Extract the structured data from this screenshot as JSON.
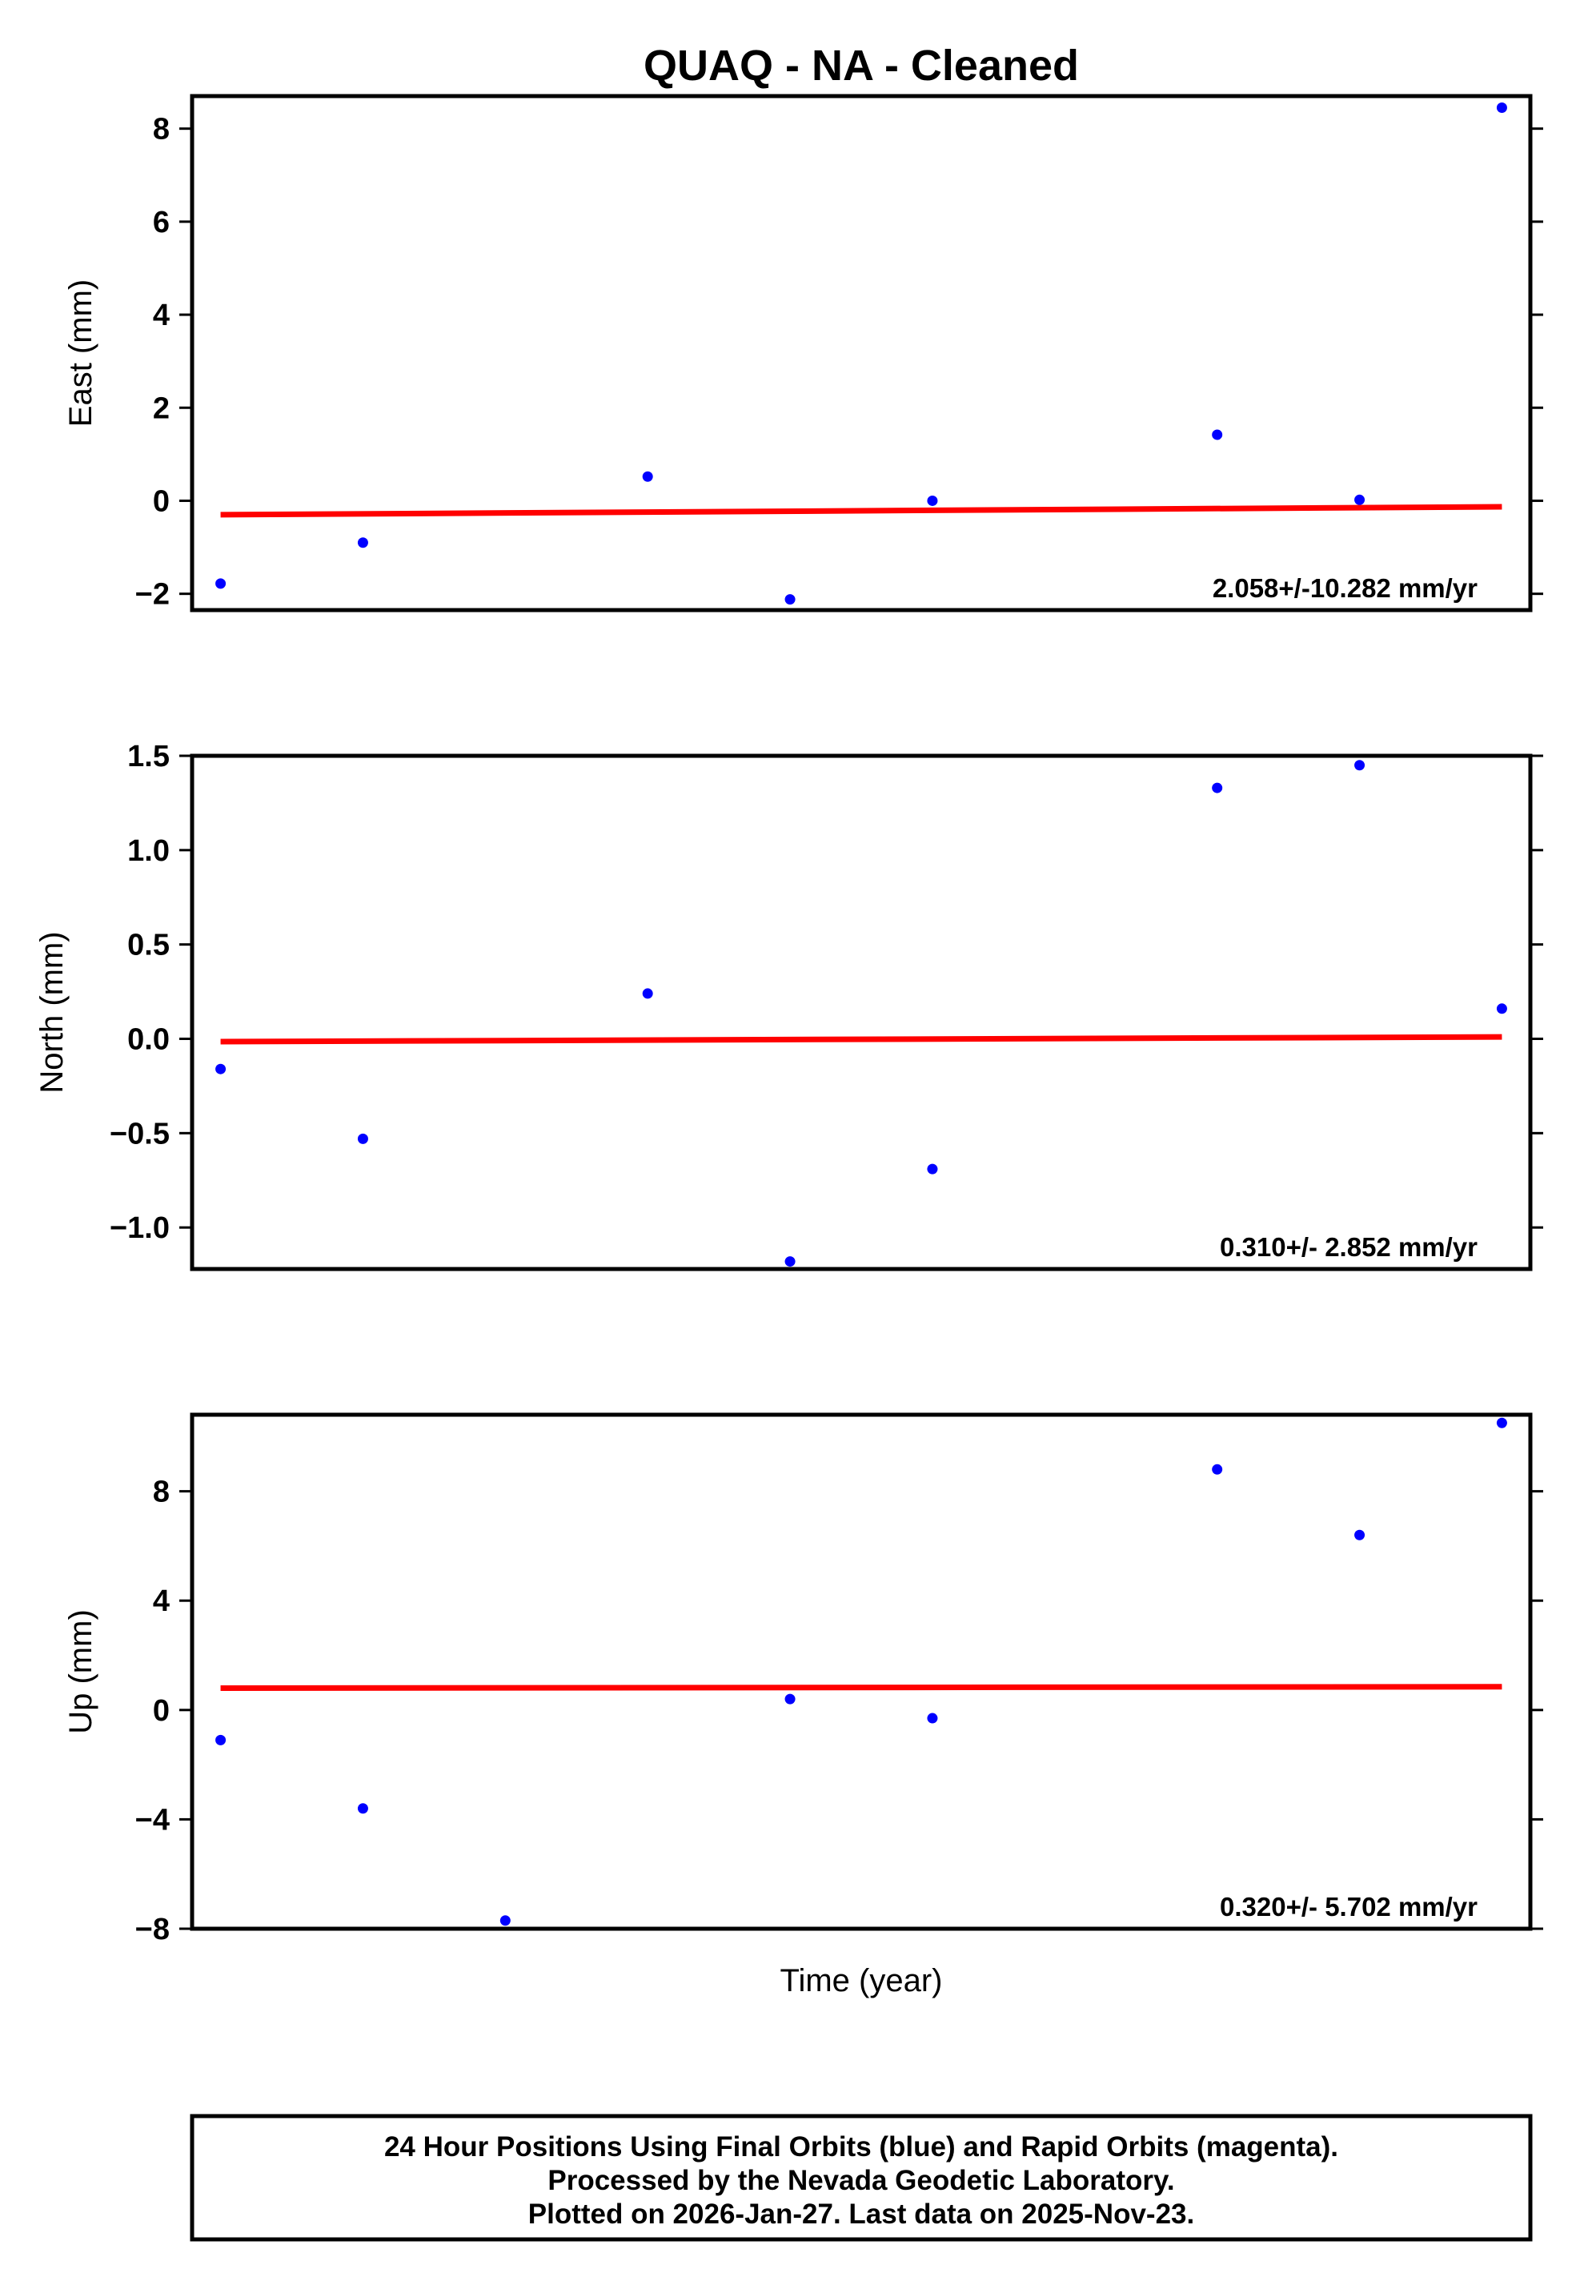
{
  "title": "QUAQ  - NA - Cleaned",
  "xlabel": "Time (year)",
  "footer": [
    "24 Hour Positions Using Final Orbits (blue) and Rapid Orbits (magenta).",
    "Processed by the Nevada Geodetic Laboratory.",
    "Plotted on 2026-Jan-27. Last data on 2025-Nov-23."
  ],
  "colors": {
    "points": "#0000ff",
    "trend": "#ff0000",
    "axes": "#000000"
  },
  "chart_data": [
    {
      "type": "scatter",
      "ylabel": "East (mm)",
      "ylim": [
        -2.35,
        8.7
      ],
      "ticks": [
        -2,
        0,
        2,
        4,
        6,
        8
      ],
      "tick_labels": [
        "−2",
        "0",
        "2",
        "4",
        "6",
        "8"
      ],
      "rate_label": "2.058+/-10.282 mm/yr",
      "x": [
        1,
        2,
        3,
        4,
        5,
        6,
        7,
        8,
        9,
        10
      ],
      "y": [
        -1.78,
        -0.9,
        null,
        0.52,
        -2.12,
        0.0,
        null,
        1.42,
        0.02,
        8.45
      ],
      "trend": [
        -0.3,
        -0.13
      ]
    },
    {
      "type": "scatter",
      "ylabel": "North (mm)",
      "ylim": [
        -1.22,
        1.5
      ],
      "ticks": [
        -1.0,
        -0.5,
        0.0,
        0.5,
        1.0,
        1.5
      ],
      "tick_labels": [
        "−1.0",
        "−0.5",
        "0.0",
        "0.5",
        "1.0",
        "1.5"
      ],
      "rate_label": "0.310+/- 2.852 mm/yr",
      "x": [
        1,
        2,
        3,
        4,
        5,
        6,
        7,
        8,
        9,
        10
      ],
      "y": [
        -0.16,
        -0.53,
        null,
        0.24,
        -1.18,
        -0.69,
        null,
        1.33,
        1.45,
        0.16
      ],
      "trend": [
        -0.015,
        0.01
      ]
    },
    {
      "type": "scatter",
      "ylabel": "Up (mm)",
      "ylim": [
        -8.0,
        10.8
      ],
      "ticks": [
        -8,
        -4,
        0,
        4,
        8
      ],
      "tick_labels": [
        "−8",
        "−4",
        "0",
        "4",
        "8"
      ],
      "rate_label": "0.320+/- 5.702 mm/yr",
      "x": [
        1,
        2,
        3,
        4,
        5,
        6,
        7,
        8,
        9,
        10
      ],
      "y": [
        -1.1,
        -3.6,
        -7.7,
        null,
        0.4,
        -0.3,
        null,
        8.8,
        6.4,
        10.5
      ],
      "trend": [
        0.8,
        0.85
      ]
    }
  ]
}
